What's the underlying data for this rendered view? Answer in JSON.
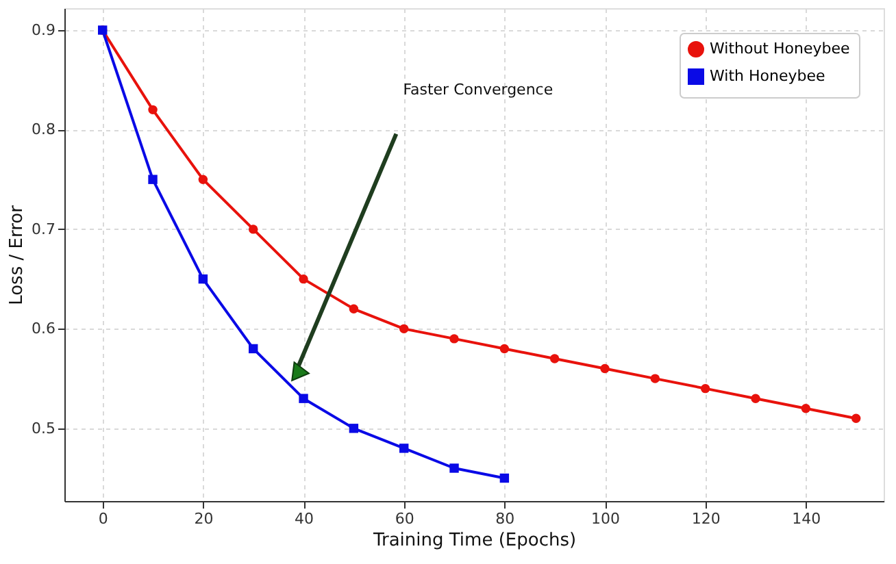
{
  "chart_data": {
    "type": "line",
    "xlabel": "Training Time (Epochs)",
    "ylabel": "Loss / Error",
    "x": [
      0,
      10,
      20,
      30,
      40,
      50,
      60,
      70,
      80,
      90,
      100,
      110,
      120,
      130,
      140,
      150
    ],
    "series": [
      {
        "name": "Without Honeybee",
        "color": "#e8120c",
        "marker": "circle",
        "values": [
          0.9,
          0.82,
          0.75,
          0.7,
          0.65,
          0.62,
          0.6,
          0.59,
          0.58,
          0.57,
          0.56,
          0.55,
          0.54,
          0.53,
          0.52,
          0.51
        ]
      },
      {
        "name": "With Honeybee",
        "color": "#0a0ae6",
        "marker": "square",
        "x": [
          0,
          10,
          20,
          30,
          40,
          50,
          60,
          70,
          80
        ],
        "values": [
          0.9,
          0.75,
          0.65,
          0.58,
          0.53,
          0.5,
          0.48,
          0.46,
          0.45
        ]
      }
    ],
    "xlim": [
      -7.6,
      155.5
    ],
    "ylim": [
      0.427,
      0.922
    ],
    "xticks": [
      0,
      20,
      40,
      60,
      80,
      100,
      120,
      140
    ],
    "yticks": [
      0.5,
      0.6,
      0.7,
      0.8,
      0.9
    ],
    "grid": true,
    "legend": "top right",
    "line_style": "solid",
    "annotations": [
      "Faster Convergence"
    ]
  }
}
